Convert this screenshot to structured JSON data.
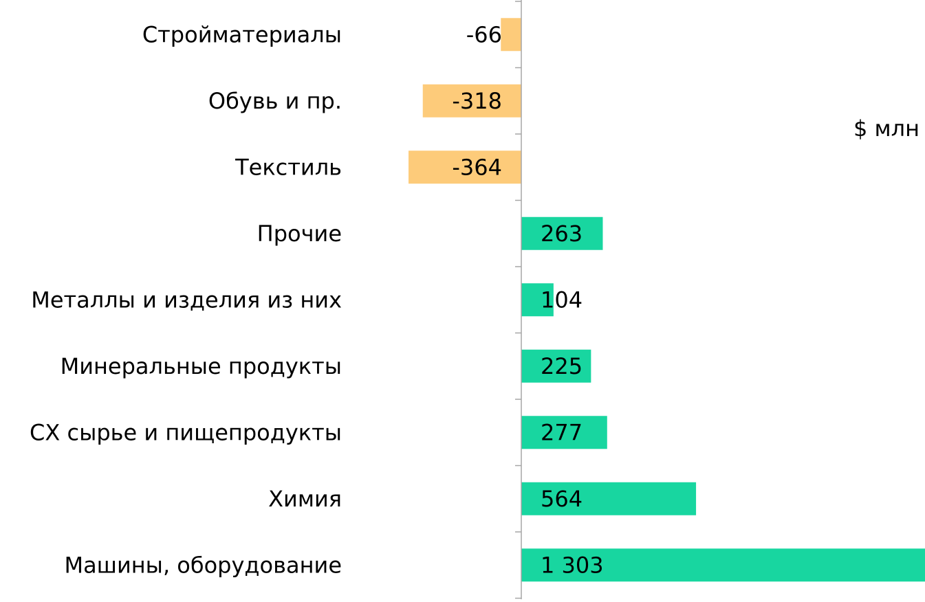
{
  "chart_data": {
    "type": "bar",
    "orientation": "horizontal",
    "unit_label": "$ млн",
    "categories": [
      "Стройматериалы",
      "Обувь и пр.",
      "Текстиль",
      "Прочие",
      "Металлы и изделия из них",
      "Минеральные продукты",
      "СХ сырье и пищепродукты",
      "Химия",
      "Машины, оборудование"
    ],
    "values": [
      -66,
      -318,
      -364,
      263,
      104,
      225,
      277,
      564,
      1303
    ],
    "value_labels": [
      "-66",
      "-318",
      "-364",
      "263",
      "104",
      "225",
      "277",
      "564",
      "1 303"
    ],
    "colors": {
      "negative": "#fdcb7a",
      "positive": "#18d6a0",
      "axis": "#a6a6a6",
      "text": "#000000"
    },
    "xlim": [
      -364,
      1303
    ],
    "grid": false,
    "legend": "none"
  }
}
